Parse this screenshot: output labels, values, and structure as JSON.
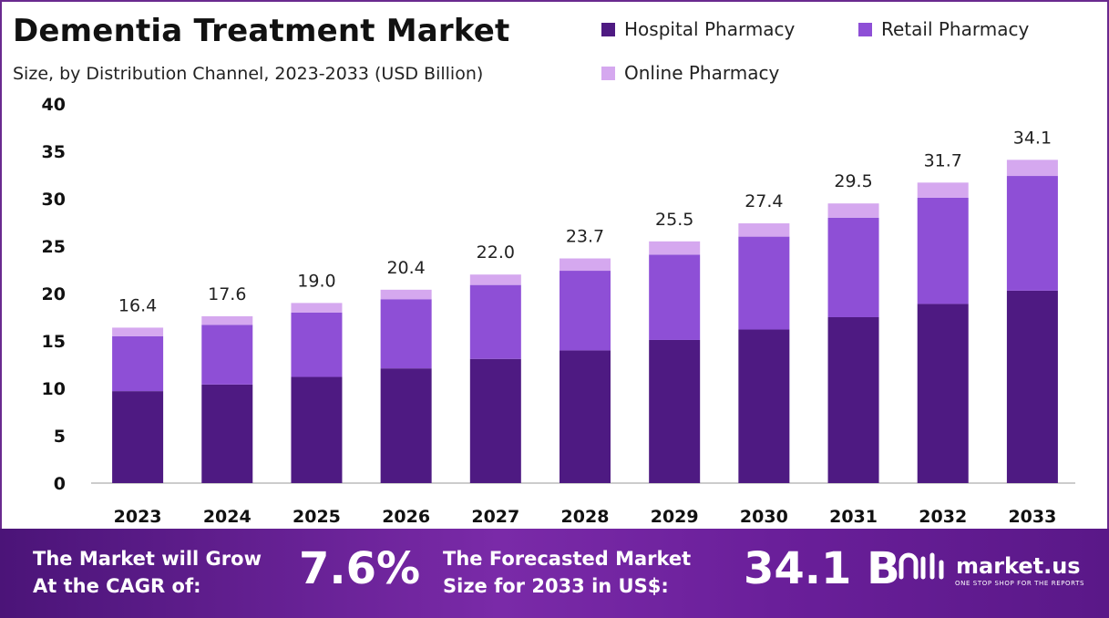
{
  "header": {
    "title": "Dementia Treatment Market",
    "subtitle": "Size, by Distribution Channel, 2023-2033 (USD Billion)"
  },
  "colors": {
    "hospital": "#4e1a82",
    "retail": "#8e4fd6",
    "online": "#d5a8ef",
    "axis": "#bbbbbb"
  },
  "chart_data": {
    "type": "bar",
    "stacked": true,
    "categories": [
      "2023",
      "2024",
      "2025",
      "2026",
      "2027",
      "2028",
      "2029",
      "2030",
      "2031",
      "2032",
      "2033"
    ],
    "series": [
      {
        "name": "Hospital Pharmacy",
        "values": [
          9.7,
          10.4,
          11.2,
          12.1,
          13.1,
          14.0,
          15.1,
          16.2,
          17.5,
          18.9,
          20.3
        ]
      },
      {
        "name": "Retail Pharmacy",
        "values": [
          5.8,
          6.3,
          6.8,
          7.3,
          7.8,
          8.4,
          9.0,
          9.8,
          10.5,
          11.2,
          12.1
        ]
      },
      {
        "name": "Online Pharmacy",
        "values": [
          0.9,
          0.9,
          1.0,
          1.0,
          1.1,
          1.3,
          1.4,
          1.4,
          1.5,
          1.6,
          1.7
        ]
      }
    ],
    "totals": [
      "16.4",
      "17.6",
      "19.0",
      "20.4",
      "22.0",
      "23.7",
      "25.5",
      "27.4",
      "29.5",
      "31.7",
      "34.1"
    ],
    "ylim": [
      0,
      40
    ],
    "yticks": [
      "0",
      "5",
      "10",
      "15",
      "20",
      "25",
      "30",
      "35",
      "40"
    ],
    "grid": false,
    "legend_position": "top-right"
  },
  "footer": {
    "cagr_text_line1": "The Market will Grow",
    "cagr_text_line2": "At the CAGR of:",
    "cagr_value": "7.6%",
    "forecast_text_line1": "The Forecasted Market",
    "forecast_text_line2": "Size for 2033 in US$:",
    "forecast_value": "34.1 B",
    "brand_name": "market.us",
    "brand_tagline": "ONE STOP SHOP FOR THE REPORTS",
    "brand_icon": "market-us-logo-icon"
  }
}
